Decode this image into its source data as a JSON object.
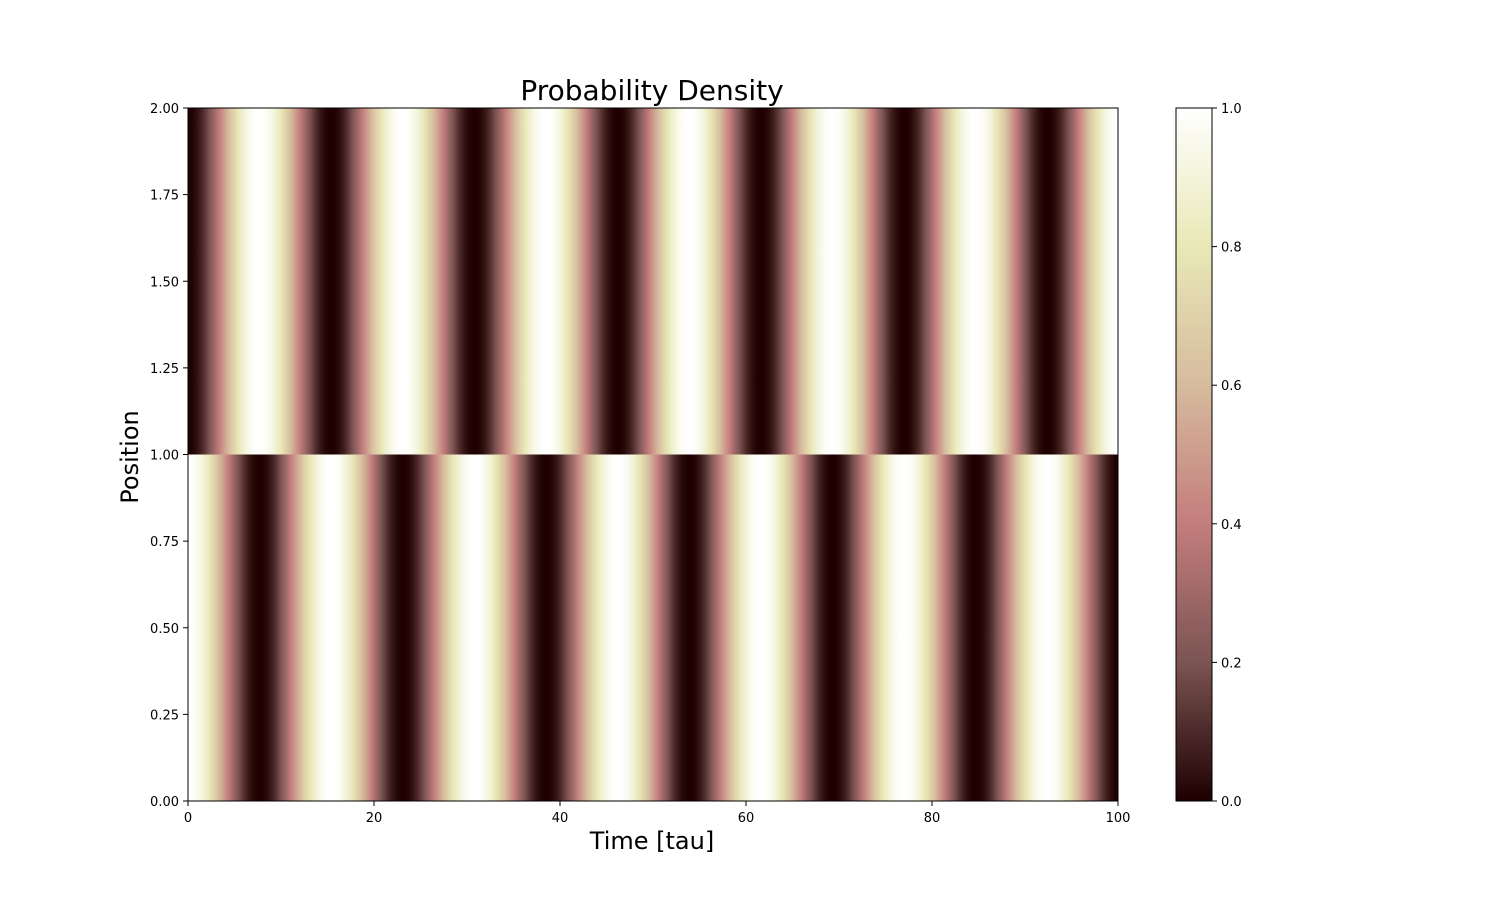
{
  "chart_data": {
    "type": "heatmap",
    "title": "Probability Density",
    "xlabel": "Time [tau]",
    "ylabel": "Position",
    "xlim": [
      0,
      100
    ],
    "ylim": [
      0,
      2
    ],
    "x_ticks": [
      0,
      20,
      40,
      60,
      80,
      100
    ],
    "x_tick_labels": [
      "0",
      "20",
      "40",
      "60",
      "80",
      "100"
    ],
    "y_ticks": [
      0,
      0.25,
      0.5,
      0.75,
      1.0,
      1.25,
      1.5,
      1.75,
      2.0
    ],
    "y_tick_labels": [
      "0.00",
      "0.25",
      "0.50",
      "0.75",
      "1.00",
      "1.25",
      "1.50",
      "1.75",
      "2.00"
    ],
    "colorbar": {
      "range": [
        0,
        1
      ],
      "ticks": [
        0,
        0.2,
        0.4,
        0.6,
        0.8,
        1.0
      ],
      "tick_labels": [
        "0.0",
        "0.2",
        "0.4",
        "0.6",
        "0.8",
        "1.0"
      ],
      "colormap": "pink",
      "colormap_stops": [
        {
          "v": 0.0,
          "color": "#1e0000"
        },
        {
          "v": 0.2,
          "color": "#7b5453"
        },
        {
          "v": 0.4,
          "color": "#c47d7d"
        },
        {
          "v": 0.6,
          "color": "#d6bb9d"
        },
        {
          "v": 0.8,
          "color": "#e8e8b6"
        },
        {
          "v": 1.0,
          "color": "#ffffff"
        }
      ]
    },
    "regions": [
      {
        "name": "upper",
        "y_range": [
          1.0,
          2.0
        ],
        "formula": "sin^2(pi*t/period)",
        "period": 15.4,
        "phase": 0.0
      },
      {
        "name": "lower",
        "y_range": [
          0.0,
          1.0
        ],
        "formula": "cos^2(pi*t/period)",
        "period": 15.4,
        "phase": 0.0
      }
    ]
  }
}
